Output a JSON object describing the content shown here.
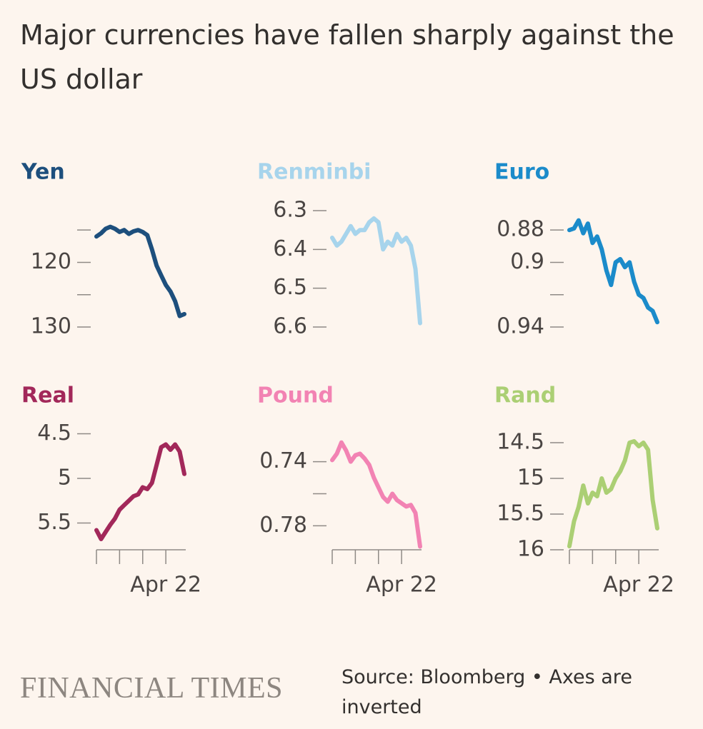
{
  "title": "Major currencies have fallen sharply against the US dollar",
  "source": "Source: Bloomberg • Axes are inverted",
  "logo": "FINANCIAL TIMES",
  "chart_data": [
    {
      "type": "line",
      "title": "Yen",
      "color": "#1d4f7d",
      "inverted": true,
      "x": [
        0,
        0.2,
        0.4,
        0.6,
        0.8,
        1,
        1.2,
        1.4,
        1.6,
        1.8,
        2,
        2.2,
        2.4,
        2.6,
        2.8,
        3,
        3.2,
        3.4,
        3.6,
        3.8
      ],
      "values": [
        116,
        115.5,
        114.8,
        114.5,
        114.8,
        115.3,
        115,
        115.6,
        115.2,
        115,
        115.3,
        115.8,
        118,
        120.5,
        122,
        123.5,
        124.5,
        126,
        128.3,
        128
      ],
      "xlim": [
        0,
        3.8
      ],
      "ylim": [
        112,
        130
      ],
      "yticks": [
        120,
        130
      ],
      "yminor": [
        115,
        125
      ]
    },
    {
      "type": "line",
      "title": "Renminbi",
      "color": "#a7d4ec",
      "inverted": true,
      "x": [
        0,
        0.2,
        0.4,
        0.6,
        0.8,
        1,
        1.2,
        1.4,
        1.6,
        1.8,
        2,
        2.2,
        2.4,
        2.6,
        2.8,
        3,
        3.2,
        3.4,
        3.6,
        3.8
      ],
      "values": [
        6.37,
        6.39,
        6.38,
        6.36,
        6.34,
        6.36,
        6.35,
        6.35,
        6.33,
        6.32,
        6.33,
        6.4,
        6.38,
        6.39,
        6.36,
        6.38,
        6.37,
        6.39,
        6.45,
        6.59
      ],
      "xlim": [
        0,
        3.8
      ],
      "ylim": [
        6.3,
        6.6
      ],
      "yticks": [
        6.3,
        6.4,
        6.5,
        6.6
      ],
      "yminor": []
    },
    {
      "type": "line",
      "title": "Euro",
      "color": "#1b8bca",
      "inverted": true,
      "x": [
        0,
        0.2,
        0.4,
        0.6,
        0.8,
        1,
        1.2,
        1.4,
        1.6,
        1.8,
        2,
        2.2,
        2.4,
        2.6,
        2.8,
        3,
        3.2,
        3.4,
        3.6,
        3.8
      ],
      "values": [
        0.88,
        0.879,
        0.874,
        0.882,
        0.876,
        0.888,
        0.884,
        0.892,
        0.905,
        0.914,
        0.9,
        0.898,
        0.903,
        0.9,
        0.912,
        0.92,
        0.922,
        0.928,
        0.93,
        0.937
      ],
      "xlim": [
        0,
        3.8
      ],
      "ylim": [
        0.868,
        0.94
      ],
      "yticks": [
        0.88,
        0.9,
        0.94
      ],
      "yminor": [
        0.92
      ]
    },
    {
      "type": "line",
      "title": "Real",
      "color": "#a2285a",
      "inverted": true,
      "x": [
        0,
        0.2,
        0.4,
        0.6,
        0.8,
        1,
        1.2,
        1.4,
        1.6,
        1.8,
        2,
        2.2,
        2.4,
        2.6,
        2.8,
        3,
        3.2,
        3.4,
        3.6,
        3.8
      ],
      "values": [
        5.58,
        5.68,
        5.6,
        5.52,
        5.45,
        5.35,
        5.3,
        5.25,
        5.2,
        5.18,
        5.1,
        5.12,
        5.05,
        4.85,
        4.65,
        4.62,
        4.68,
        4.62,
        4.7,
        4.95
      ],
      "xlim": [
        0,
        3.8
      ],
      "ylim": [
        4.4,
        5.8
      ],
      "yticks": [
        4.5,
        5,
        5.5
      ],
      "yminor": [],
      "xticks": [
        {
          "value": 3,
          "label": "Apr 22"
        }
      ],
      "xminor": [
        0,
        1,
        2
      ]
    },
    {
      "type": "line",
      "title": "Pound",
      "color": "#f283b3",
      "inverted": true,
      "x": [
        0,
        0.2,
        0.4,
        0.6,
        0.8,
        1,
        1.2,
        1.4,
        1.6,
        1.8,
        2,
        2.2,
        2.4,
        2.6,
        2.8,
        3,
        3.2,
        3.4,
        3.6,
        3.8
      ],
      "values": [
        0.739,
        0.735,
        0.728,
        0.733,
        0.74,
        0.736,
        0.735,
        0.738,
        0.742,
        0.75,
        0.756,
        0.762,
        0.765,
        0.76,
        0.764,
        0.766,
        0.768,
        0.767,
        0.772,
        0.793
      ],
      "xlim": [
        0,
        3.8
      ],
      "ylim": [
        0.717,
        0.795
      ],
      "yticks": [
        0.74,
        0.78
      ],
      "yminor": [
        0.76
      ],
      "xticks": [
        {
          "value": 3,
          "label": "Apr 22"
        }
      ],
      "xminor": [
        0,
        1,
        2
      ]
    },
    {
      "type": "line",
      "title": "Rand",
      "color": "#abcf74",
      "inverted": true,
      "x": [
        0,
        0.2,
        0.4,
        0.6,
        0.8,
        1,
        1.2,
        1.4,
        1.6,
        1.8,
        2,
        2.2,
        2.4,
        2.6,
        2.8,
        3,
        3.2,
        3.4,
        3.6,
        3.8
      ],
      "values": [
        15.95,
        15.6,
        15.4,
        15.1,
        15.35,
        15.2,
        15.25,
        15,
        15.2,
        15.15,
        15,
        14.9,
        14.75,
        14.5,
        14.48,
        14.55,
        14.5,
        14.6,
        15.3,
        15.7
      ],
      "xlim": [
        0,
        3.8
      ],
      "ylim": [
        14.25,
        16
      ],
      "yticks": [
        14.5,
        15,
        15.5,
        16
      ],
      "yminor": [],
      "xticks": [
        {
          "value": 3,
          "label": "Apr 22"
        }
      ],
      "xminor": [
        0,
        1,
        2
      ]
    }
  ]
}
